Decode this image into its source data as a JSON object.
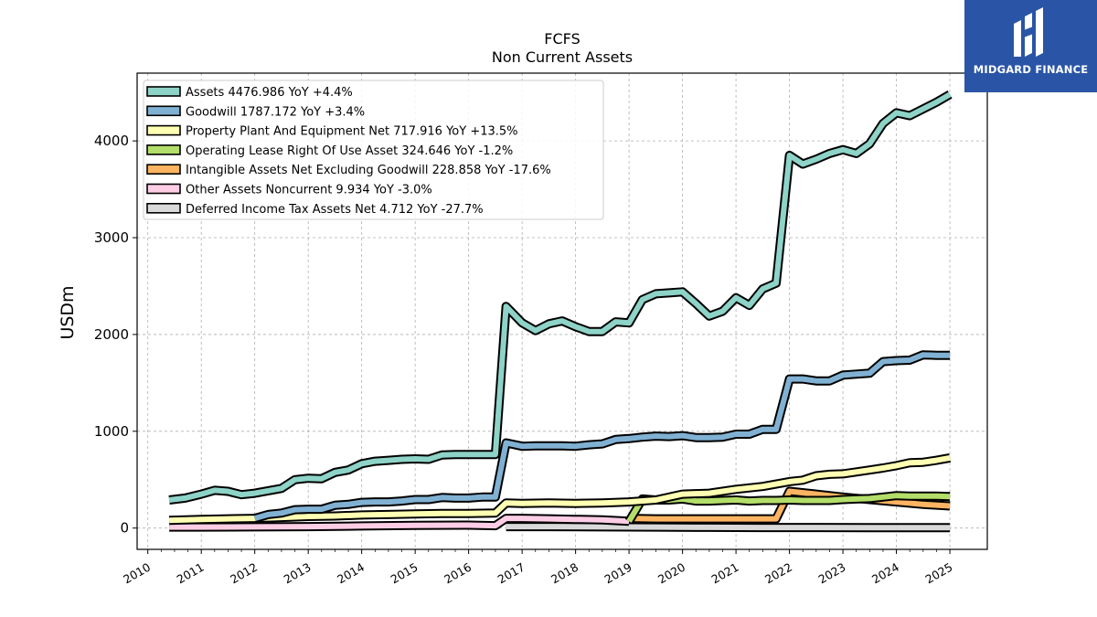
{
  "brand": {
    "name": "MIDGARD FINANCE",
    "color": "#2a55a6"
  },
  "chart_data": {
    "type": "line",
    "title": "FCFS",
    "subtitle": "Non Current  Assets",
    "ylabel": "USDm",
    "xlabel": "",
    "xlim": [
      2009.8,
      2025.7
    ],
    "ylim": [
      -220,
      4700
    ],
    "grid": true,
    "legend_position": "top-left",
    "x_ticks": [
      2010,
      2011,
      2012,
      2013,
      2014,
      2015,
      2016,
      2017,
      2018,
      2019,
      2020,
      2021,
      2022,
      2023,
      2024,
      2025
    ],
    "x_tick_labels": [
      "2010",
      "2011",
      "2012",
      "2013",
      "2014",
      "2015",
      "2016",
      "2017",
      "2018",
      "2019",
      "2020",
      "2021",
      "2022",
      "2023",
      "2024",
      "2025"
    ],
    "y_ticks": [
      0,
      1000,
      2000,
      3000,
      4000
    ],
    "y_tick_labels": [
      "0",
      "1000",
      "2000",
      "3000",
      "4000"
    ],
    "series": [
      {
        "name": "Assets  4476.986 YoY +4.4%",
        "color": "#8dd3c7",
        "x": [
          2010.4,
          2010.7,
          2011.0,
          2011.25,
          2011.5,
          2011.75,
          2012.0,
          2012.25,
          2012.5,
          2012.75,
          2013.0,
          2013.25,
          2013.5,
          2013.75,
          2014.0,
          2014.25,
          2014.5,
          2014.75,
          2015.0,
          2015.25,
          2015.5,
          2015.75,
          2016.0,
          2016.25,
          2016.5,
          2016.7,
          2017.0,
          2017.25,
          2017.5,
          2017.75,
          2018.0,
          2018.25,
          2018.5,
          2018.75,
          2019.0,
          2019.25,
          2019.5,
          2019.75,
          2020.0,
          2020.25,
          2020.5,
          2020.75,
          2021.0,
          2021.25,
          2021.5,
          2021.75,
          2022.0,
          2022.25,
          2022.5,
          2022.75,
          2023.0,
          2023.25,
          2023.5,
          2023.75,
          2024.0,
          2024.25,
          2024.5,
          2024.75,
          2025.0
        ],
        "values": [
          290,
          310,
          350,
          390,
          380,
          345,
          360,
          385,
          410,
          500,
          515,
          510,
          575,
          600,
          665,
          690,
          700,
          710,
          715,
          710,
          755,
          760,
          760,
          760,
          760,
          2290,
          2120,
          2040,
          2110,
          2140,
          2080,
          2030,
          2030,
          2130,
          2120,
          2360,
          2420,
          2430,
          2440,
          2320,
          2190,
          2240,
          2380,
          2300,
          2470,
          2530,
          3850,
          3760,
          3810,
          3870,
          3910,
          3870,
          3970,
          4180,
          4290,
          4260,
          4330,
          4400,
          4480
        ]
      },
      {
        "name": "Goodwill  1787.172 YoY +3.4%",
        "color": "#80b1d3",
        "x": [
          2012.0,
          2012.25,
          2012.5,
          2012.75,
          2013.0,
          2013.25,
          2013.5,
          2013.75,
          2014.0,
          2014.25,
          2014.5,
          2014.75,
          2015.0,
          2015.25,
          2015.5,
          2015.75,
          2016.0,
          2016.25,
          2016.5,
          2016.7,
          2017.0,
          2017.25,
          2017.5,
          2017.75,
          2018.0,
          2018.25,
          2018.5,
          2018.75,
          2019.0,
          2019.25,
          2019.5,
          2019.75,
          2020.0,
          2020.25,
          2020.5,
          2020.75,
          2021.0,
          2021.25,
          2021.5,
          2021.75,
          2022.0,
          2022.25,
          2022.5,
          2022.75,
          2023.0,
          2023.25,
          2023.5,
          2023.75,
          2024.0,
          2024.25,
          2024.5,
          2024.75,
          2025.0
        ],
        "values": [
          100,
          140,
          155,
          190,
          195,
          195,
          235,
          245,
          265,
          270,
          270,
          280,
          295,
          295,
          315,
          310,
          310,
          320,
          320,
          880,
          845,
          850,
          850,
          850,
          845,
          860,
          870,
          915,
          925,
          940,
          950,
          945,
          955,
          935,
          935,
          940,
          970,
          970,
          1020,
          1020,
          1540,
          1540,
          1520,
          1520,
          1580,
          1590,
          1600,
          1720,
          1730,
          1735,
          1790,
          1785,
          1785
        ]
      },
      {
        "name": "Property Plant And Equipment Net  717.916 YoY +13.5%",
        "color": "#ffffb3",
        "x": [
          2010.4,
          2011.0,
          2011.5,
          2012.0,
          2012.5,
          2013.0,
          2013.5,
          2014.0,
          2014.5,
          2015.0,
          2015.5,
          2016.0,
          2016.5,
          2016.7,
          2017.0,
          2017.5,
          2018.0,
          2018.5,
          2019.0,
          2019.5,
          2020.0,
          2020.5,
          2021.0,
          2021.5,
          2022.0,
          2022.25,
          2022.5,
          2022.75,
          2023.0,
          2023.25,
          2023.5,
          2023.75,
          2024.0,
          2024.25,
          2024.5,
          2024.75,
          2025.0
        ],
        "values": [
          80,
          90,
          95,
          100,
          110,
          120,
          125,
          135,
          140,
          145,
          150,
          150,
          155,
          260,
          255,
          260,
          255,
          260,
          270,
          290,
          350,
          360,
          400,
          430,
          480,
          495,
          540,
          555,
          560,
          580,
          600,
          620,
          645,
          675,
          680,
          700,
          725
        ]
      },
      {
        "name": "Operating Lease Right Of Use Asset  324.646 YoY -1.2%",
        "color": "#b3de69",
        "x": [
          2019.0,
          2019.25,
          2019.5,
          2019.75,
          2020.0,
          2020.25,
          2020.5,
          2020.75,
          2021.0,
          2021.25,
          2021.5,
          2021.75,
          2022.0,
          2022.25,
          2022.5,
          2022.75,
          2023.0,
          2023.25,
          2023.5,
          2023.75,
          2024.0,
          2024.25,
          2024.5,
          2024.75,
          2025.0
        ],
        "values": [
          70,
          300,
          290,
          290,
          300,
          280,
          280,
          285,
          290,
          280,
          285,
          285,
          290,
          285,
          285,
          285,
          295,
          300,
          305,
          320,
          335,
          330,
          330,
          330,
          325
        ]
      },
      {
        "name": "Intangible Assets Net Excluding Goodwill  228.858 YoY -17.6%",
        "color": "#fdb462",
        "x": [
          2019.0,
          2019.5,
          2020.0,
          2020.5,
          2021.0,
          2021.5,
          2021.75,
          2022.0,
          2022.5,
          2023.0,
          2023.5,
          2024.0,
          2024.5,
          2025.0
        ],
        "values": [
          100,
          95,
          95,
          95,
          95,
          95,
          95,
          380,
          350,
          320,
          295,
          270,
          245,
          229
        ]
      },
      {
        "name": "Other Assets Noncurrent  9.934 YoY -3.0%",
        "color": "#fccde5",
        "x": [
          2010.4,
          2011.0,
          2012.0,
          2013.0,
          2014.0,
          2015.0,
          2016.0,
          2016.5,
          2016.7,
          2017.0,
          2017.5,
          2018.0,
          2018.5,
          2019.0
        ],
        "values": [
          10,
          10,
          12,
          15,
          22,
          28,
          30,
          25,
          100,
          100,
          95,
          90,
          85,
          70
        ]
      },
      {
        "name": "Deferred Income Tax Assets Net  4.712 YoY -27.7%",
        "color": "#d9d9d9",
        "x": [
          2016.7,
          2017.5,
          2018.5,
          2019.5,
          2020.5,
          2021.5,
          2022.5,
          2023.5,
          2024.5,
          2025.0
        ],
        "values": [
          15,
          15,
          12,
          10,
          8,
          6,
          6,
          5,
          5,
          5
        ]
      }
    ]
  }
}
